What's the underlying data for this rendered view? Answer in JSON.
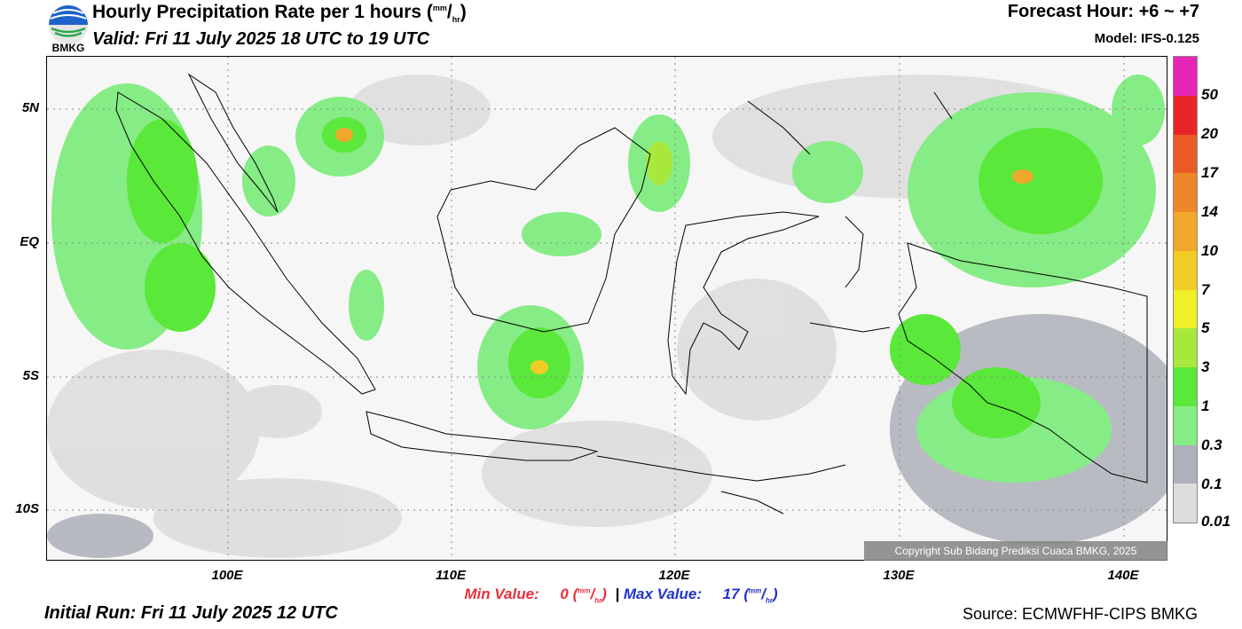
{
  "header": {
    "title_main": "Hourly Precipitation Rate per 1 hours (",
    "title_unit_top": "mm",
    "title_unit_bottom": "hr",
    "title_close": ")",
    "valid": "Valid: Fri 11 July 2025 18 UTC to 19 UTC",
    "forecast_hour": "Forecast Hour: +6 ~ +7",
    "model": "Model: IFS-0.125",
    "logo_text": "BMKG"
  },
  "map": {
    "lat_labels": [
      "5N",
      "EQ",
      "5S",
      "10S"
    ],
    "lon_labels": [
      "100E",
      "110E",
      "120E",
      "130E",
      "140E"
    ],
    "copyright": "Copyright Sub Bidang Prediksi Cuaca BMKG, 2025"
  },
  "colorbar": {
    "labels": [
      "50",
      "20",
      "17",
      "14",
      "10",
      "7",
      "5",
      "3",
      "1",
      "0.3",
      "0.1",
      "0.01"
    ],
    "colors": [
      "#e626b6",
      "#e8262a",
      "#ea5a26",
      "#ee862a",
      "#f0a82c",
      "#f2cc26",
      "#f0f02a",
      "#a8e83c",
      "#5ae83a",
      "#86ec86",
      "#aeb0ba",
      "#dcdcdc"
    ]
  },
  "stats": {
    "min_label": "Min Value:",
    "min_value": "0",
    "separator": "|",
    "max_label": "Max Value:",
    "max_value": "17",
    "unit_top": "mm",
    "unit_bottom": "hr"
  },
  "footer": {
    "initial_run": "Initial Run: Fri 11 July 2025 12 UTC",
    "source": "Source: ECMWFHF-CIPS BMKG"
  }
}
